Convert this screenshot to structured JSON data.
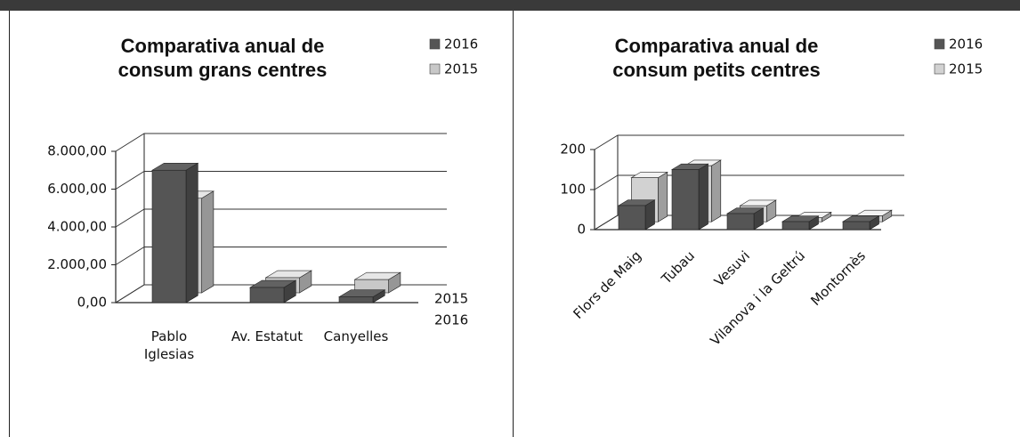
{
  "chart_data": [
    {
      "type": "bar3d",
      "title": "Comparativa anual de consum grans centres",
      "categories": [
        "Pablo Iglesias",
        "Av. Estatut",
        "Canyelles"
      ],
      "series": [
        {
          "name": "2016",
          "color": "#555555",
          "values": [
            7000,
            800,
            300
          ]
        },
        {
          "name": "2015",
          "color": "#c8c8c8",
          "values": [
            5000,
            800,
            700
          ]
        }
      ],
      "ylim": [
        0,
        8000
      ],
      "yticks": [
        {
          "value": 0,
          "label": "0,00"
        },
        {
          "value": 2000,
          "label": "2.000,00"
        },
        {
          "value": 4000,
          "label": "4.000,00"
        },
        {
          "value": 6000,
          "label": "6.000,00"
        },
        {
          "value": 8000,
          "label": "8.000,00"
        }
      ],
      "grid": true,
      "legend": "top-right"
    },
    {
      "type": "bar3d",
      "title": "Comparativa anual de consum petits centres",
      "categories": [
        "Flors de Maig",
        "Tubau",
        "Vesuvi",
        "Vilanova i la Geltrú",
        "Montornès"
      ],
      "series": [
        {
          "name": "2016",
          "color": "#555555",
          "values": [
            60,
            150,
            40,
            20,
            20
          ]
        },
        {
          "name": "2015",
          "color": "#d2d2d2",
          "values": [
            110,
            140,
            40,
            10,
            15
          ]
        }
      ],
      "ylim": [
        0,
        200
      ],
      "yticks": [
        0,
        100,
        200
      ],
      "grid": true,
      "legend": "top-right"
    }
  ]
}
